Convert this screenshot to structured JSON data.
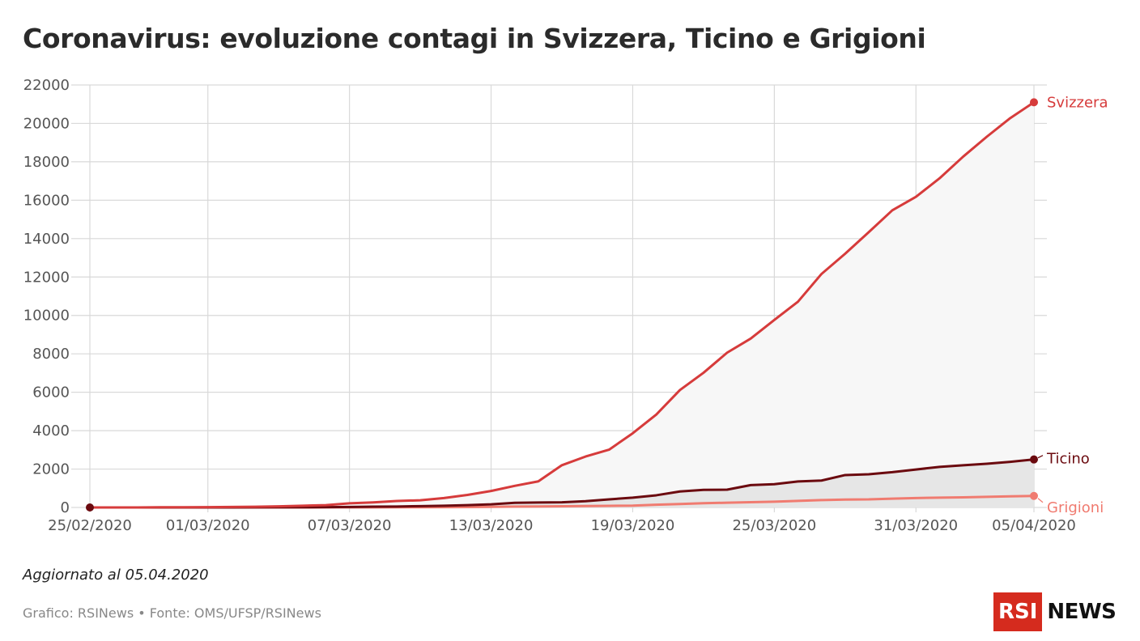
{
  "title": "Coronavirus: evoluzione contagi in Svizzera, Ticino e Grigioni",
  "note": "Aggiornato al 05.04.2020",
  "footer": "Grafico: RSINews • Fonte: OMS/UFSP/RSINews",
  "logo": {
    "rsi": "RSI",
    "news": "NEWS"
  },
  "colors": {
    "svizzera": "#d63b3b",
    "ticino": "#6b0a0f",
    "grigioni": "#f07b70",
    "grid": "#d9d9d9",
    "area_svizzera": "#f7f7f7",
    "area_ticino": "#e6e6e6",
    "axis_text": "#555555"
  },
  "chart_data": {
    "type": "line",
    "title": "Coronavirus: evoluzione contagi in Svizzera, Ticino e Grigioni",
    "xlabel": "",
    "ylabel": "",
    "ylim": [
      0,
      22000
    ],
    "yticks": [
      0,
      2000,
      4000,
      6000,
      8000,
      10000,
      12000,
      14000,
      16000,
      18000,
      20000,
      22000
    ],
    "x_range": [
      "25/02/2020",
      "05/04/2020"
    ],
    "xticks": [
      "25/02/2020",
      "01/03/2020",
      "07/03/2020",
      "13/03/2020",
      "19/03/2020",
      "25/03/2020",
      "31/03/2020",
      "05/04/2020"
    ],
    "grid": true,
    "legend": "direct labels at line ends (right)",
    "x": [
      "25/02/2020",
      "26/02/2020",
      "27/02/2020",
      "28/02/2020",
      "29/02/2020",
      "01/03/2020",
      "02/03/2020",
      "03/03/2020",
      "04/03/2020",
      "05/03/2020",
      "06/03/2020",
      "07/03/2020",
      "08/03/2020",
      "09/03/2020",
      "10/03/2020",
      "11/03/2020",
      "12/03/2020",
      "13/03/2020",
      "14/03/2020",
      "15/03/2020",
      "16/03/2020",
      "17/03/2020",
      "18/03/2020",
      "19/03/2020",
      "20/03/2020",
      "21/03/2020",
      "22/03/2020",
      "23/03/2020",
      "24/03/2020",
      "25/03/2020",
      "26/03/2020",
      "27/03/2020",
      "28/03/2020",
      "29/03/2020",
      "30/03/2020",
      "31/03/2020",
      "01/04/2020",
      "02/04/2020",
      "03/04/2020",
      "04/04/2020",
      "05/04/2020"
    ],
    "series": [
      {
        "name": "Svizzera",
        "values": [
          1,
          1,
          1,
          8,
          10,
          18,
          27,
          37,
          58,
          90,
          120,
          214,
          264,
          337,
          374,
          491,
          652,
          858,
          1125,
          1359,
          2200,
          2650,
          3010,
          3863,
          4840,
          6113,
          7014,
          8060,
          8795,
          9765,
          10714,
          12161,
          13213,
          14336,
          15475,
          16176,
          17139,
          18267,
          19303,
          20278,
          21100
        ]
      },
      {
        "name": "Ticino",
        "values": [
          0,
          0,
          1,
          1,
          1,
          1,
          2,
          6,
          8,
          10,
          16,
          24,
          40,
          50,
          70,
          90,
          120,
          165,
          241,
          258,
          268,
          329,
          422,
          511,
          634,
          834,
          918,
          927,
          1165,
          1211,
          1354,
          1401,
          1688,
          1727,
          1837,
          1977,
          2113,
          2197,
          2275,
          2376,
          2500
        ]
      },
      {
        "name": "Grigioni",
        "values": [
          0,
          0,
          0,
          0,
          0,
          1,
          1,
          1,
          2,
          2,
          3,
          4,
          5,
          8,
          10,
          14,
          20,
          32,
          45,
          55,
          65,
          75,
          85,
          96,
          140,
          180,
          223,
          247,
          276,
          300,
          343,
          385,
          412,
          420,
          456,
          491,
          511,
          527,
          552,
          580,
          600
        ]
      }
    ]
  }
}
